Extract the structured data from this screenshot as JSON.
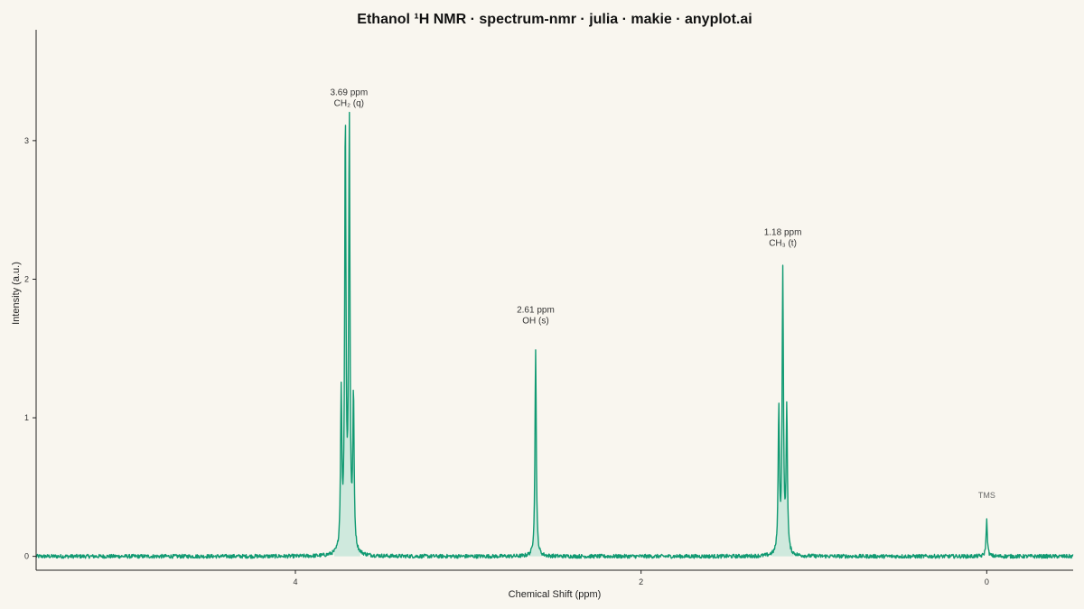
{
  "chart_data": {
    "type": "line",
    "title": "Ethanol ¹H NMR · spectrum-nmr · julia · makie · anyplot.ai",
    "xlabel": "Chemical Shift (ppm)",
    "ylabel": "Intensity (a.u.)",
    "xlim": [
      5.5,
      -0.5
    ],
    "ylim": [
      -0.1,
      3.8
    ],
    "x_reversed": true,
    "x_ticks": [
      4,
      2,
      0
    ],
    "y_ticks": [
      0,
      1,
      2,
      3
    ],
    "grid": false,
    "line_color": "#119a72",
    "fill_color": "#cfe9dd",
    "peaks": [
      {
        "name": "CH2 quartet",
        "center_ppm": 3.69,
        "lines": [
          {
            "ppm": 3.735,
            "height": 1.13
          },
          {
            "ppm": 3.711,
            "height": 3.1
          },
          {
            "ppm": 3.688,
            "height": 3.08
          },
          {
            "ppm": 3.664,
            "height": 1.1
          }
        ]
      },
      {
        "name": "OH singlet",
        "center_ppm": 2.61,
        "lines": [
          {
            "ppm": 2.61,
            "height": 1.5
          }
        ]
      },
      {
        "name": "CH3 triplet",
        "center_ppm": 1.18,
        "lines": [
          {
            "ppm": 1.203,
            "height": 1.04
          },
          {
            "ppm": 1.18,
            "height": 2.02
          },
          {
            "ppm": 1.157,
            "height": 1.04
          }
        ]
      },
      {
        "name": "TMS reference",
        "center_ppm": 0.0,
        "lines": [
          {
            "ppm": 0.0,
            "height": 0.26
          }
        ]
      }
    ],
    "annotations": [
      {
        "line1": "3.69 ppm",
        "line2": "CH₂ (q)",
        "x": 3.69,
        "y": 3.25
      },
      {
        "line1": "2.61 ppm",
        "line2": "OH (s)",
        "x": 2.61,
        "y": 1.68
      },
      {
        "line1": "1.18 ppm",
        "line2": "CH₃ (t)",
        "x": 1.18,
        "y": 2.24
      },
      {
        "line1": "TMS",
        "line2": "",
        "x": 0.0,
        "y": 0.42
      }
    ]
  }
}
